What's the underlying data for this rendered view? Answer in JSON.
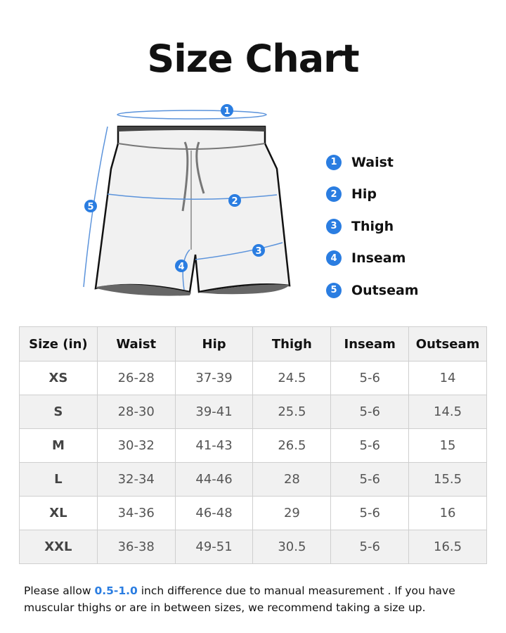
{
  "title": "Size Chart",
  "accent_color": "#2a7de1",
  "legend": [
    {
      "num": "1",
      "label": "Waist"
    },
    {
      "num": "2",
      "label": "Hip"
    },
    {
      "num": "3",
      "label": "Thigh"
    },
    {
      "num": "4",
      "label": "Inseam"
    },
    {
      "num": "5",
      "label": "Outseam"
    }
  ],
  "table": {
    "headers": [
      "Size (in)",
      "Waist",
      "Hip",
      "Thigh",
      "Inseam",
      "Outseam"
    ],
    "rows": [
      [
        "XS",
        "26-28",
        "37-39",
        "24.5",
        "5-6",
        "14"
      ],
      [
        "S",
        "28-30",
        "39-41",
        "25.5",
        "5-6",
        "14.5"
      ],
      [
        "M",
        "30-32",
        "41-43",
        "26.5",
        "5-6",
        "15"
      ],
      [
        "L",
        "32-34",
        "44-46",
        "28",
        "5-6",
        "15.5"
      ],
      [
        "XL",
        "34-36",
        "46-48",
        "29",
        "5-6",
        "16"
      ],
      [
        "XXL",
        "36-38",
        "49-51",
        "30.5",
        "5-6",
        "16.5"
      ]
    ]
  },
  "note": {
    "before": "Please allow ",
    "highlight": "0.5-1.0",
    "after": " inch difference due to manual measurement . If you have muscular thighs or are in between sizes, we recommend taking a size up."
  }
}
